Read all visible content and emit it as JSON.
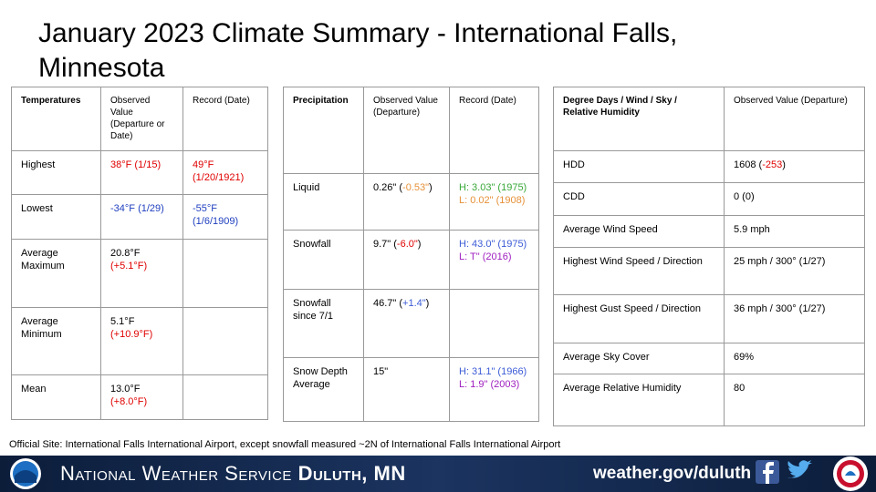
{
  "title": "January 2023 Climate Summary - International Falls, Minnesota",
  "tables": [
    {
      "headers": [
        "Temperatures",
        "Observed Value (Departure or Date)",
        "Record (Date)"
      ],
      "rows": [
        [
          [
            {
              "text": "Highest"
            }
          ],
          [
            {
              "text": "38°F (1/15)",
              "color": "#e00000"
            }
          ],
          [
            {
              "text": "49°F (1/20/1921)",
              "color": "#e00000"
            }
          ]
        ],
        [
          [
            {
              "text": "Lowest"
            }
          ],
          [
            {
              "text": "-34°F (1/29)",
              "color": "#1f3fbf"
            }
          ],
          [
            {
              "text": "-55°F (1/6/1909)",
              "color": "#1f3fbf"
            }
          ]
        ],
        [
          [
            {
              "text": "Average Maximum"
            }
          ],
          [
            {
              "text": "20.8°F"
            },
            {
              "text": "(+5.1°F)",
              "color": "#e00000"
            }
          ],
          []
        ],
        [
          [
            {
              "text": "Average Minimum"
            }
          ],
          [
            {
              "text": "5.1°F"
            },
            {
              "text": "(+10.9°F)",
              "color": "#e00000"
            }
          ],
          []
        ],
        [
          [
            {
              "text": "Mean"
            }
          ],
          [
            {
              "text": "13.0°F"
            },
            {
              "text": "(+8.0°F)",
              "color": "#e00000"
            }
          ],
          []
        ]
      ]
    },
    {
      "headers": [
        "Precipitation",
        "Observed Value (Departure)",
        "Record (Date)"
      ],
      "rows": [
        [
          [
            {
              "text": "Liquid"
            }
          ],
          [
            {
              "text": "0.26\" ("
            },
            {
              "text": "-0.53\"",
              "color": "#e69138"
            },
            {
              "text": ")"
            }
          ],
          [
            {
              "text": "H: 3.03\" (1975)",
              "color": "#38a838"
            },
            {
              "text": "L: 0.02\" (1908)",
              "color": "#e69138"
            }
          ]
        ],
        [
          [
            {
              "text": "Snowfall"
            }
          ],
          [
            {
              "text": "9.7\" ("
            },
            {
              "text": "-6.0\"",
              "color": "#e00000"
            },
            {
              "text": ")"
            }
          ],
          [
            {
              "text": "H: 43.0\" (1975)",
              "color": "#3b5bd6"
            },
            {
              "text": "L: T\" (2016)",
              "color": "#a020c0"
            }
          ]
        ],
        [
          [
            {
              "text": "Snowfall since 7/1"
            }
          ],
          [
            {
              "text": "46.7\" ("
            },
            {
              "text": "+1.4\"",
              "color": "#3b5bd6"
            },
            {
              "text": ")"
            }
          ],
          []
        ],
        [
          [
            {
              "text": "Snow Depth Average"
            }
          ],
          [
            {
              "text": "15\""
            }
          ],
          [
            {
              "text": "H: 31.1\" (1966)",
              "color": "#3b5bd6"
            },
            {
              "text": "L: 1.9\" (2003)",
              "color": "#a020c0"
            }
          ]
        ]
      ]
    },
    {
      "headers": [
        "Degree Days / Wind / Sky / Relative Humidity",
        "Observed Value (Departure)"
      ],
      "rows": [
        [
          [
            {
              "text": "HDD"
            }
          ],
          [
            {
              "text": "1608 ("
            },
            {
              "text": "-253",
              "color": "#e00000"
            },
            {
              "text": ")"
            }
          ]
        ],
        [
          [
            {
              "text": "CDD"
            }
          ],
          [
            {
              "text": "0 (0)"
            }
          ]
        ],
        [
          [
            {
              "text": "Average Wind Speed"
            }
          ],
          [
            {
              "text": "5.9 mph"
            }
          ]
        ],
        [
          [
            {
              "text": "Highest Wind Speed / Direction"
            }
          ],
          [
            {
              "text": "25 mph / 300° (1/27)"
            }
          ]
        ],
        [
          [
            {
              "text": "Highest Gust Speed / Direction"
            }
          ],
          [
            {
              "text": "36 mph / 300° (1/27)"
            }
          ]
        ],
        [
          [
            {
              "text": "Average Sky Cover"
            }
          ],
          [
            {
              "text": "69%"
            }
          ]
        ],
        [
          [
            {
              "text": "Average Relative Humidity"
            }
          ],
          [
            {
              "text": "80"
            }
          ]
        ]
      ]
    }
  ],
  "footnote": "Official Site: International Falls International Airport, except snowfall measured ~2N of International Falls International Airport",
  "footer": {
    "agency": "National Weather Service",
    "office": "Duluth, MN",
    "url": "weather.gov/duluth"
  }
}
